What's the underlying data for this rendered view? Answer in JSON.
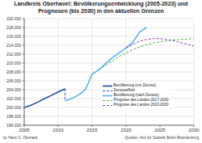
{
  "chart_data": {
    "type": "line",
    "title": "Landkreis Oberhavel: Bevölkerungsentwicklung (2005-2023) und Prognosen (bis 2030) in den aktuellen Grenzen",
    "xlim": [
      2005,
      2030
    ],
    "xticks": [
      2005,
      2010,
      2015,
      2020,
      2025,
      2030
    ],
    "ylim": [
      196000,
      220000
    ],
    "yticks": [
      {
        "value": 196000,
        "label": "196.000"
      },
      {
        "value": 198000,
        "label": "198.000"
      },
      {
        "value": 200000,
        "label": "200.000"
      },
      {
        "value": 202000,
        "label": "202.000"
      },
      {
        "value": 204000,
        "label": "204.000"
      },
      {
        "value": 206000,
        "label": "206.000"
      },
      {
        "value": 208000,
        "label": "208.000"
      },
      {
        "value": 210000,
        "label": "210.000"
      },
      {
        "value": 212000,
        "label": "212.000"
      },
      {
        "value": 214000,
        "label": "214.000"
      },
      {
        "value": 216000,
        "label": "216.000"
      },
      {
        "value": 218000,
        "label": "218.000"
      },
      {
        "value": 220000,
        "label": "220.000"
      }
    ],
    "grid": true,
    "legend": "right",
    "series": [
      {
        "name": "Bevölkerung (vor Zensus)",
        "color": "#1f4e9c",
        "line_style": "solid",
        "x": [
          2005,
          2006,
          2007,
          2008,
          2009,
          2010,
          2011
        ],
        "values": [
          200000,
          200500,
          201200,
          202000,
          202700,
          203500,
          204200
        ]
      },
      {
        "name": "Zensuseffekt",
        "color": "#1f4e9c",
        "line_style": "dashed",
        "x": [
          2011,
          2011
        ],
        "values": [
          204200,
          201500
        ]
      },
      {
        "name": "Bevölkerung (nach Zensus)",
        "color": "#5ab4e6",
        "line_style": "solid",
        "x": [
          2011,
          2012,
          2013,
          2014,
          2015,
          2016,
          2017,
          2018,
          2019,
          2020,
          2021,
          2022,
          2023
        ],
        "values": [
          201500,
          202000,
          202800,
          204000,
          207500,
          208500,
          209900,
          211200,
          212300,
          213400,
          214700,
          217000,
          218000
        ]
      },
      {
        "name": "Prognose des Landes 2017-2030",
        "color": "#4caf50",
        "line_style": "dashed",
        "x": [
          2016,
          2017,
          2018,
          2019,
          2020,
          2021,
          2022,
          2023,
          2024,
          2025,
          2026,
          2027,
          2028,
          2029,
          2030
        ],
        "values": [
          208500,
          209500,
          210500,
          211500,
          212300,
          213000,
          213600,
          214100,
          214500,
          214800,
          215000,
          215200,
          215300,
          215400,
          215500
        ]
      },
      {
        "name": "Prognose des Landes 2020-2030",
        "color": "#8e44ad",
        "line_style": "dashed",
        "x": [
          2020,
          2021,
          2022,
          2023,
          2024,
          2025,
          2026,
          2027,
          2028,
          2029,
          2030
        ],
        "values": [
          213400,
          214200,
          214900,
          215300,
          215500,
          215500,
          215300,
          215000,
          214600,
          214200,
          213800
        ]
      }
    ],
    "annotations": [
      "by Hans G. Oberlack",
      "Quellen: Amt für Statistik Berlin-Brandenburg"
    ]
  }
}
